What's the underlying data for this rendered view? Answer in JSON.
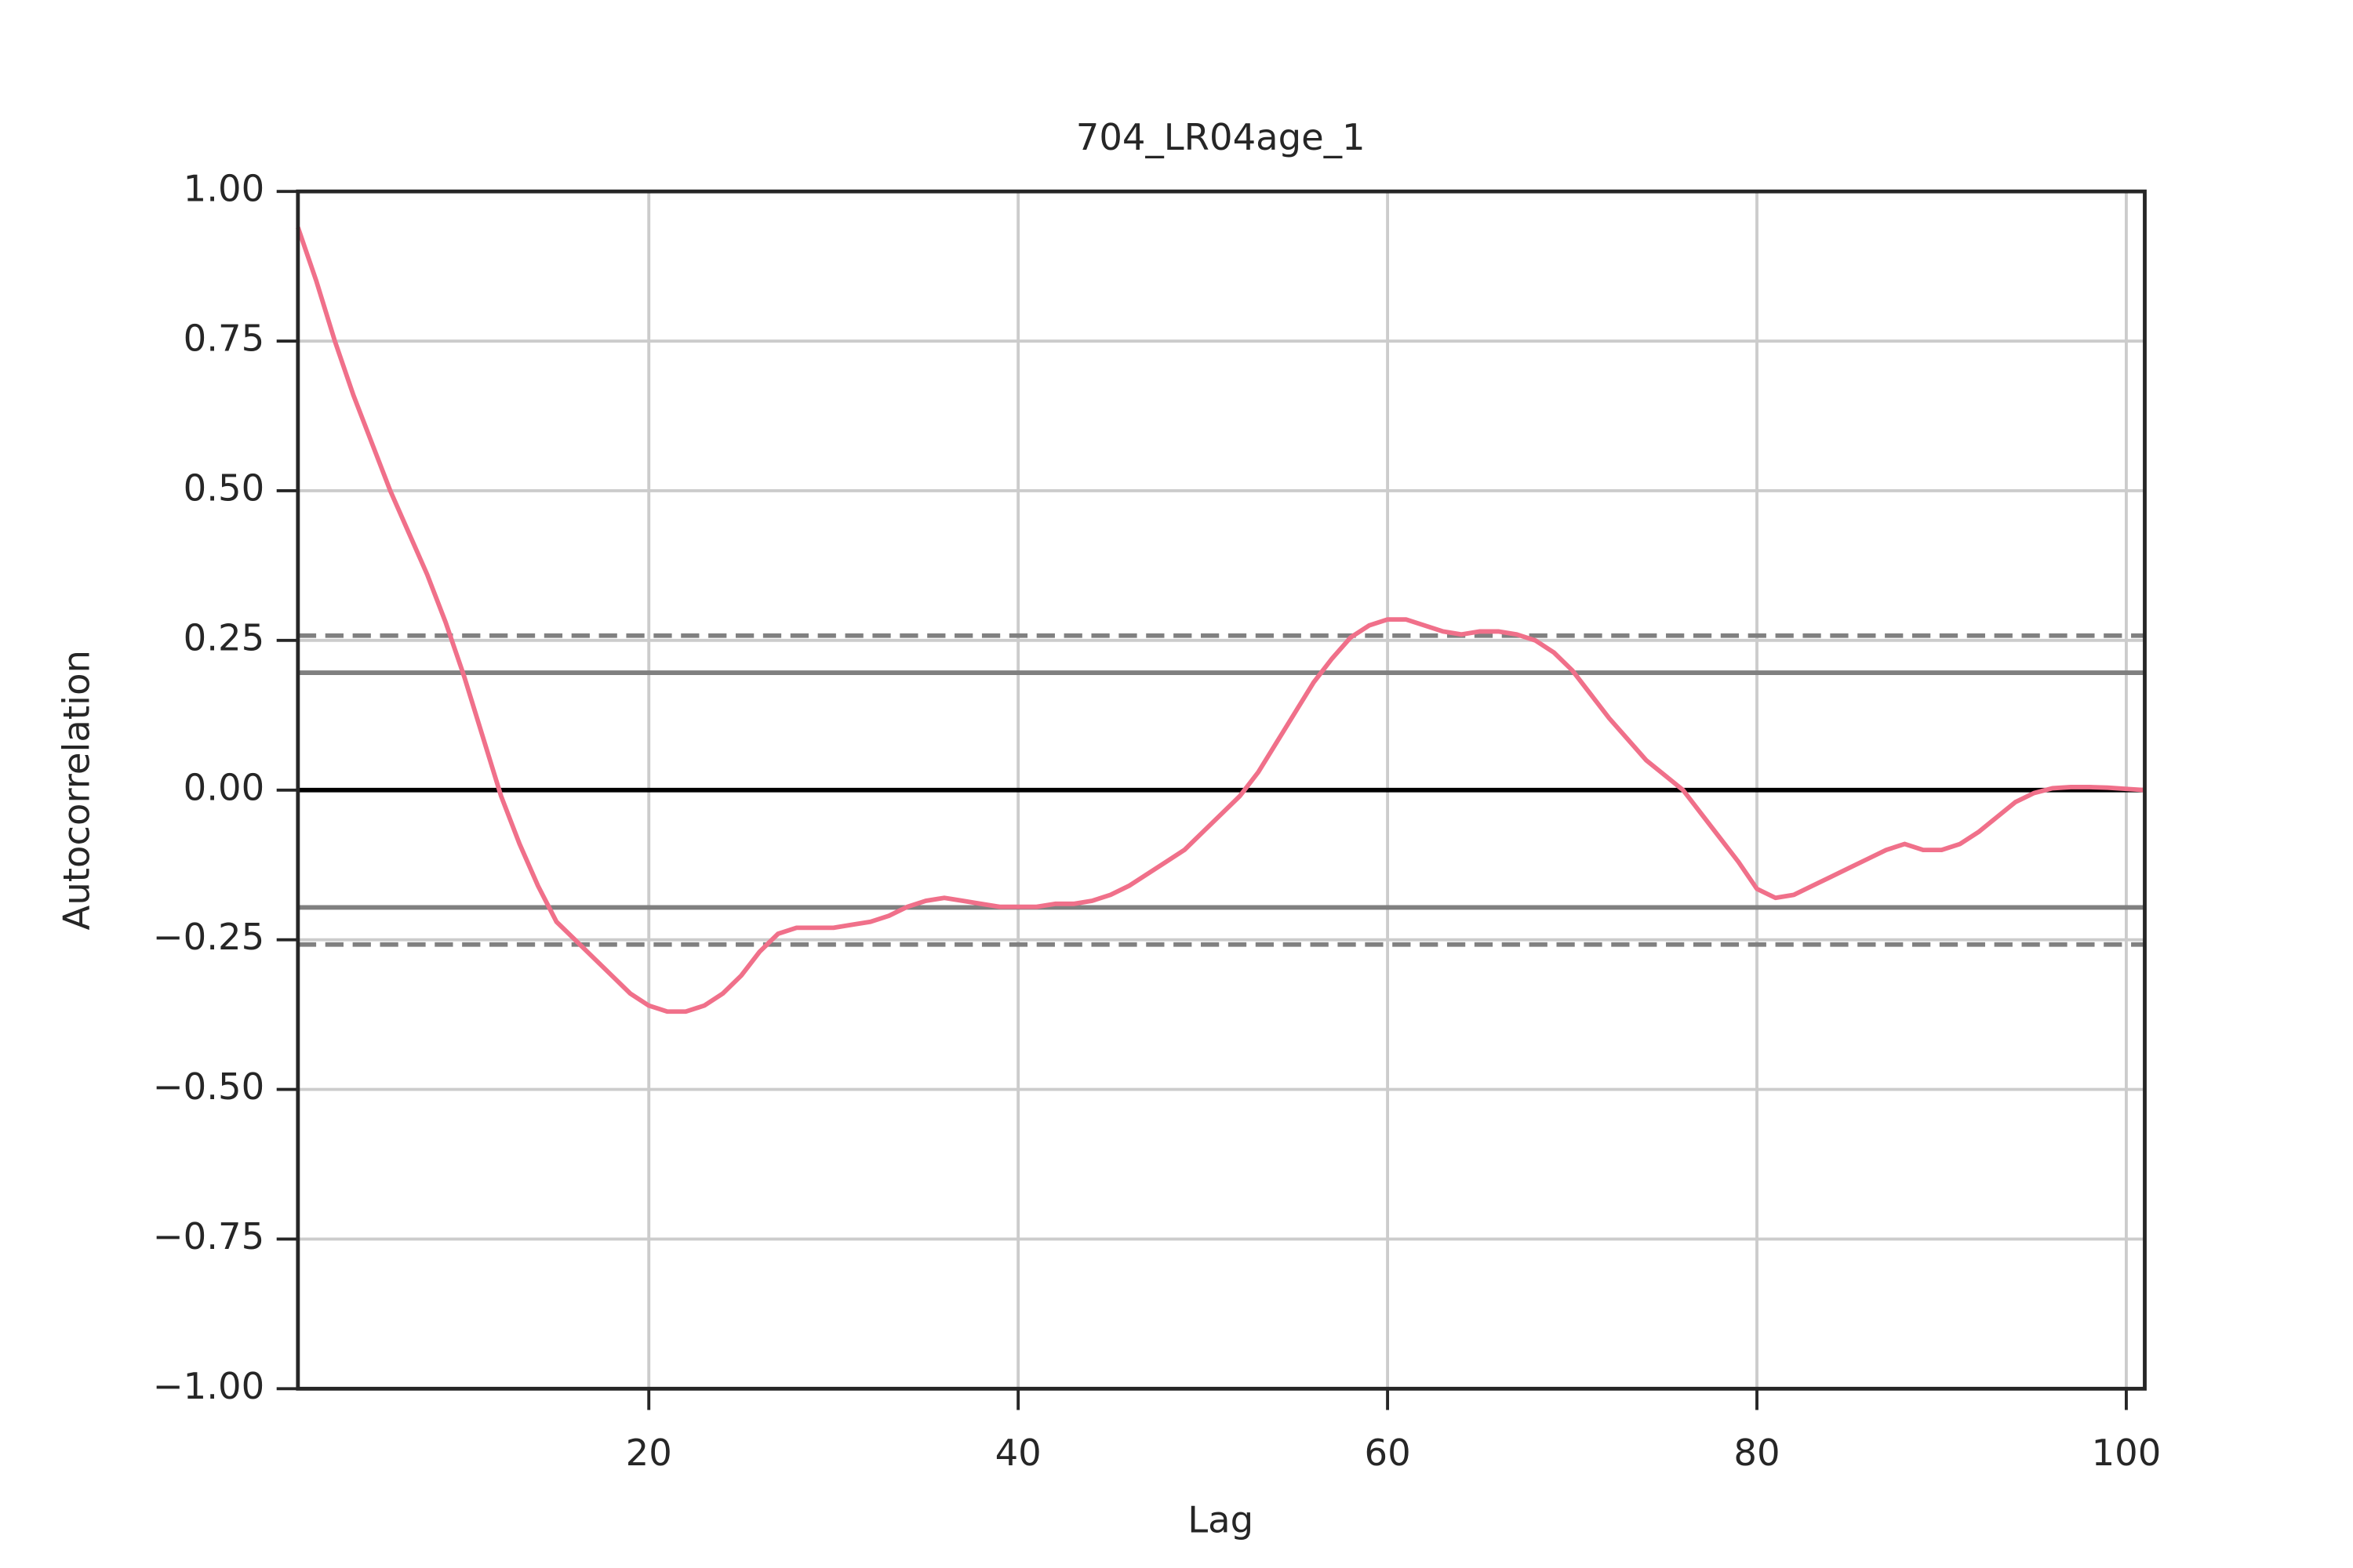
{
  "chart_data": {
    "type": "line",
    "title": "704_LR04age_1",
    "xlabel": "Lag",
    "ylabel": "Autocorrelation",
    "x": [
      1,
      2,
      3,
      4,
      5,
      6,
      7,
      8,
      9,
      10,
      11,
      12,
      13,
      14,
      15,
      16,
      17,
      18,
      19,
      20,
      21,
      22,
      23,
      24,
      25,
      26,
      27,
      28,
      29,
      30,
      31,
      32,
      33,
      34,
      35,
      36,
      37,
      38,
      39,
      40,
      41,
      42,
      43,
      44,
      45,
      46,
      47,
      48,
      49,
      50,
      51,
      52,
      53,
      54,
      55,
      56,
      57,
      58,
      59,
      60,
      61,
      62,
      63,
      64,
      65,
      66,
      67,
      68,
      69,
      70,
      71,
      72,
      73,
      74,
      75,
      76,
      77,
      78,
      79,
      80,
      81,
      82,
      83,
      84,
      85,
      86,
      87,
      88,
      89,
      90,
      91,
      92,
      93,
      94,
      95,
      96,
      97,
      98,
      99,
      100,
      101
    ],
    "series": [
      {
        "name": "704_LR04age_1",
        "color": "#f0708a",
        "values": [
          0.94,
          0.85,
          0.75,
          0.66,
          0.58,
          0.5,
          0.43,
          0.36,
          0.28,
          0.19,
          0.09,
          -0.01,
          -0.09,
          -0.16,
          -0.22,
          -0.25,
          -0.28,
          -0.31,
          -0.34,
          -0.36,
          -0.37,
          -0.37,
          -0.36,
          -0.34,
          -0.31,
          -0.27,
          -0.24,
          -0.23,
          -0.23,
          -0.23,
          -0.225,
          -0.22,
          -0.21,
          -0.195,
          -0.185,
          -0.18,
          -0.185,
          -0.19,
          -0.195,
          -0.195,
          -0.195,
          -0.19,
          -0.19,
          -0.185,
          -0.175,
          -0.16,
          -0.14,
          -0.12,
          -0.1,
          -0.07,
          -0.04,
          -0.01,
          0.03,
          0.08,
          0.13,
          0.18,
          0.22,
          0.255,
          0.275,
          0.285,
          0.285,
          0.275,
          0.265,
          0.26,
          0.265,
          0.265,
          0.26,
          0.25,
          0.23,
          0.2,
          0.16,
          0.12,
          0.085,
          0.05,
          0.025,
          0.0,
          -0.04,
          -0.08,
          -0.12,
          -0.165,
          -0.18,
          -0.175,
          -0.16,
          -0.145,
          -0.13,
          -0.115,
          -0.1,
          -0.09,
          -0.1,
          -0.1,
          -0.09,
          -0.07,
          -0.045,
          -0.02,
          -0.005,
          0.003,
          0.005,
          0.005,
          0.004,
          0.002,
          0.0
        ]
      }
    ],
    "hlines": [
      {
        "value": 0.258,
        "color": "#808080",
        "style": "dashed"
      },
      {
        "value": 0.196,
        "color": "#808080",
        "style": "solid"
      },
      {
        "value": 0,
        "color": "#000000",
        "style": "solid"
      },
      {
        "value": -0.196,
        "color": "#808080",
        "style": "solid"
      },
      {
        "value": -0.258,
        "color": "#808080",
        "style": "dashed"
      }
    ],
    "xlim": [
      1,
      101
    ],
    "ylim": [
      -1,
      1
    ],
    "xticks": [
      20,
      40,
      60,
      80,
      100
    ],
    "yticks": [
      {
        "value": -1,
        "label": "−1.00"
      },
      {
        "value": -0.75,
        "label": "−0.75"
      },
      {
        "value": -0.5,
        "label": "−0.50"
      },
      {
        "value": -0.25,
        "label": "−0.25"
      },
      {
        "value": 0,
        "label": "0.00"
      },
      {
        "value": 0.25,
        "label": "0.25"
      },
      {
        "value": 0.5,
        "label": "0.50"
      },
      {
        "value": 0.75,
        "label": "0.75"
      },
      {
        "value": 1,
        "label": "1.00"
      }
    ],
    "grid": true
  }
}
